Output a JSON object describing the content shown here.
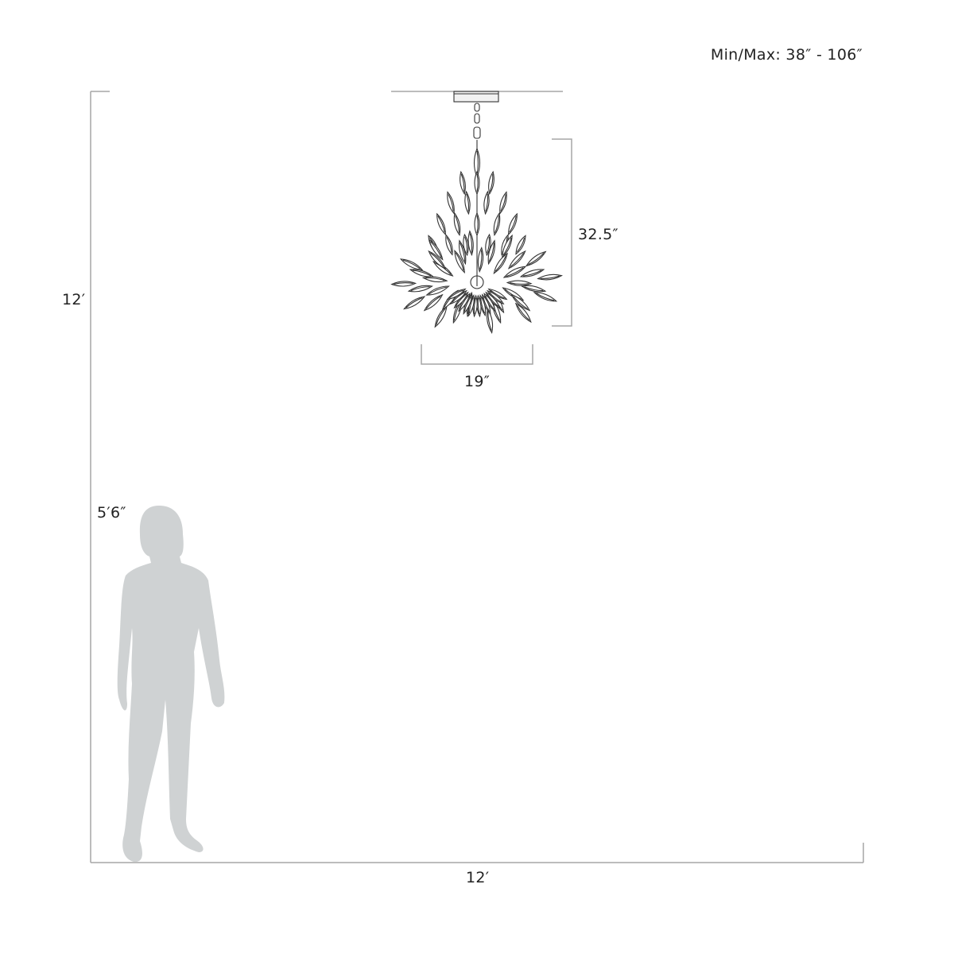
{
  "range_label": "Min/Max: 38″ - 106″",
  "fixture_height": "32.5″",
  "fixture_width": "19″",
  "room_height": "12′",
  "room_width": "12′",
  "person_height": "5′6″",
  "colors": {
    "line": "#a6a6a6",
    "silhouette": "#cfd2d3",
    "fixture": "#333333"
  }
}
